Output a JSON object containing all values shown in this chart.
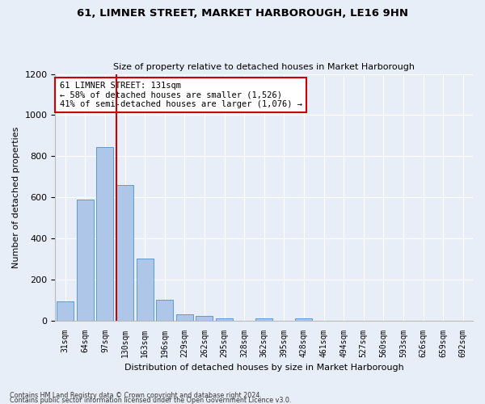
{
  "title": "61, LIMNER STREET, MARKET HARBOROUGH, LE16 9HN",
  "subtitle": "Size of property relative to detached houses in Market Harborough",
  "xlabel": "Distribution of detached houses by size in Market Harborough",
  "ylabel": "Number of detached properties",
  "bar_color": "#aec6e8",
  "bar_edge_color": "#5b9bd5",
  "categories": [
    "31sqm",
    "64sqm",
    "97sqm",
    "130sqm",
    "163sqm",
    "196sqm",
    "229sqm",
    "262sqm",
    "295sqm",
    "328sqm",
    "362sqm",
    "395sqm",
    "428sqm",
    "461sqm",
    "494sqm",
    "527sqm",
    "560sqm",
    "593sqm",
    "626sqm",
    "659sqm",
    "692sqm"
  ],
  "values": [
    95,
    590,
    845,
    660,
    300,
    100,
    32,
    22,
    10,
    0,
    10,
    0,
    12,
    0,
    0,
    0,
    0,
    0,
    0,
    0,
    0
  ],
  "vline_index": 3,
  "vline_color": "#cc0000",
  "annotation_text": "61 LIMNER STREET: 131sqm\n← 58% of detached houses are smaller (1,526)\n41% of semi-detached houses are larger (1,076) →",
  "annotation_box_color": "#ffffff",
  "annotation_border_color": "#cc0000",
  "ylim": [
    0,
    1200
  ],
  "yticks": [
    0,
    200,
    400,
    600,
    800,
    1000,
    1200
  ],
  "footnote1": "Contains HM Land Registry data © Crown copyright and database right 2024.",
  "footnote2": "Contains public sector information licensed under the Open Government Licence v3.0.",
  "bg_color": "#e8eef7",
  "grid_color": "#ffffff"
}
